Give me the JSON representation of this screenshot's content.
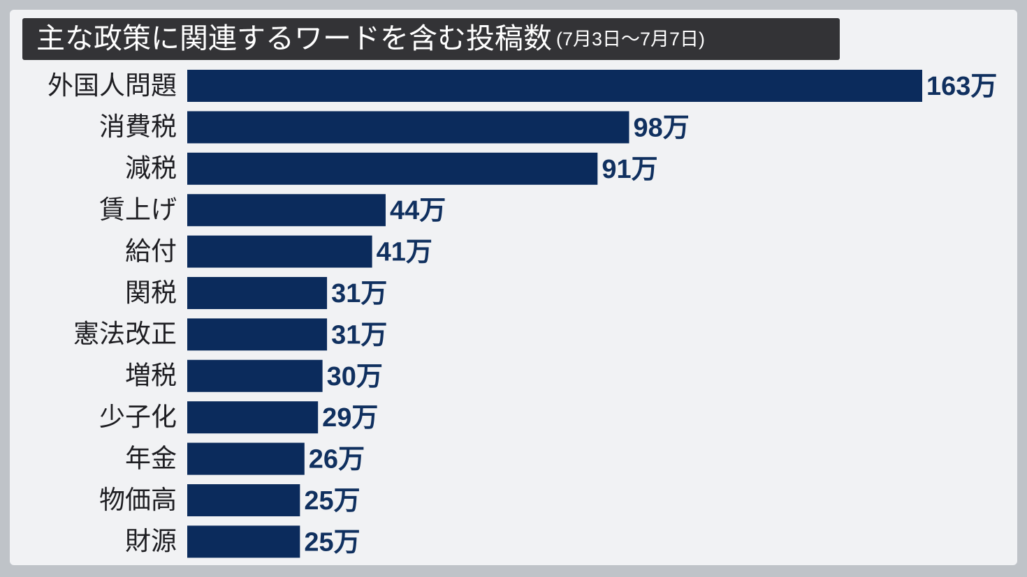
{
  "chart_data": {
    "type": "bar",
    "orientation": "horizontal",
    "title": "主な政策に関連するワードを含む投稿数",
    "subtitle": "(7月3日〜7月7日)",
    "categories": [
      "外国人問題",
      "消費税",
      "減税",
      "賃上げ",
      "給付",
      "関税",
      "憲法改正",
      "増税",
      "少子化",
      "年金",
      "物価高",
      "財源"
    ],
    "values": [
      163,
      98,
      91,
      44,
      41,
      31,
      31,
      30,
      29,
      26,
      25,
      25
    ],
    "value_labels": [
      "163万",
      "98万",
      "91万",
      "44万",
      "41万",
      "31万",
      "31万",
      "30万",
      "29万",
      "26万",
      "25万",
      "25万"
    ],
    "color": "#0b2b5c"
  }
}
